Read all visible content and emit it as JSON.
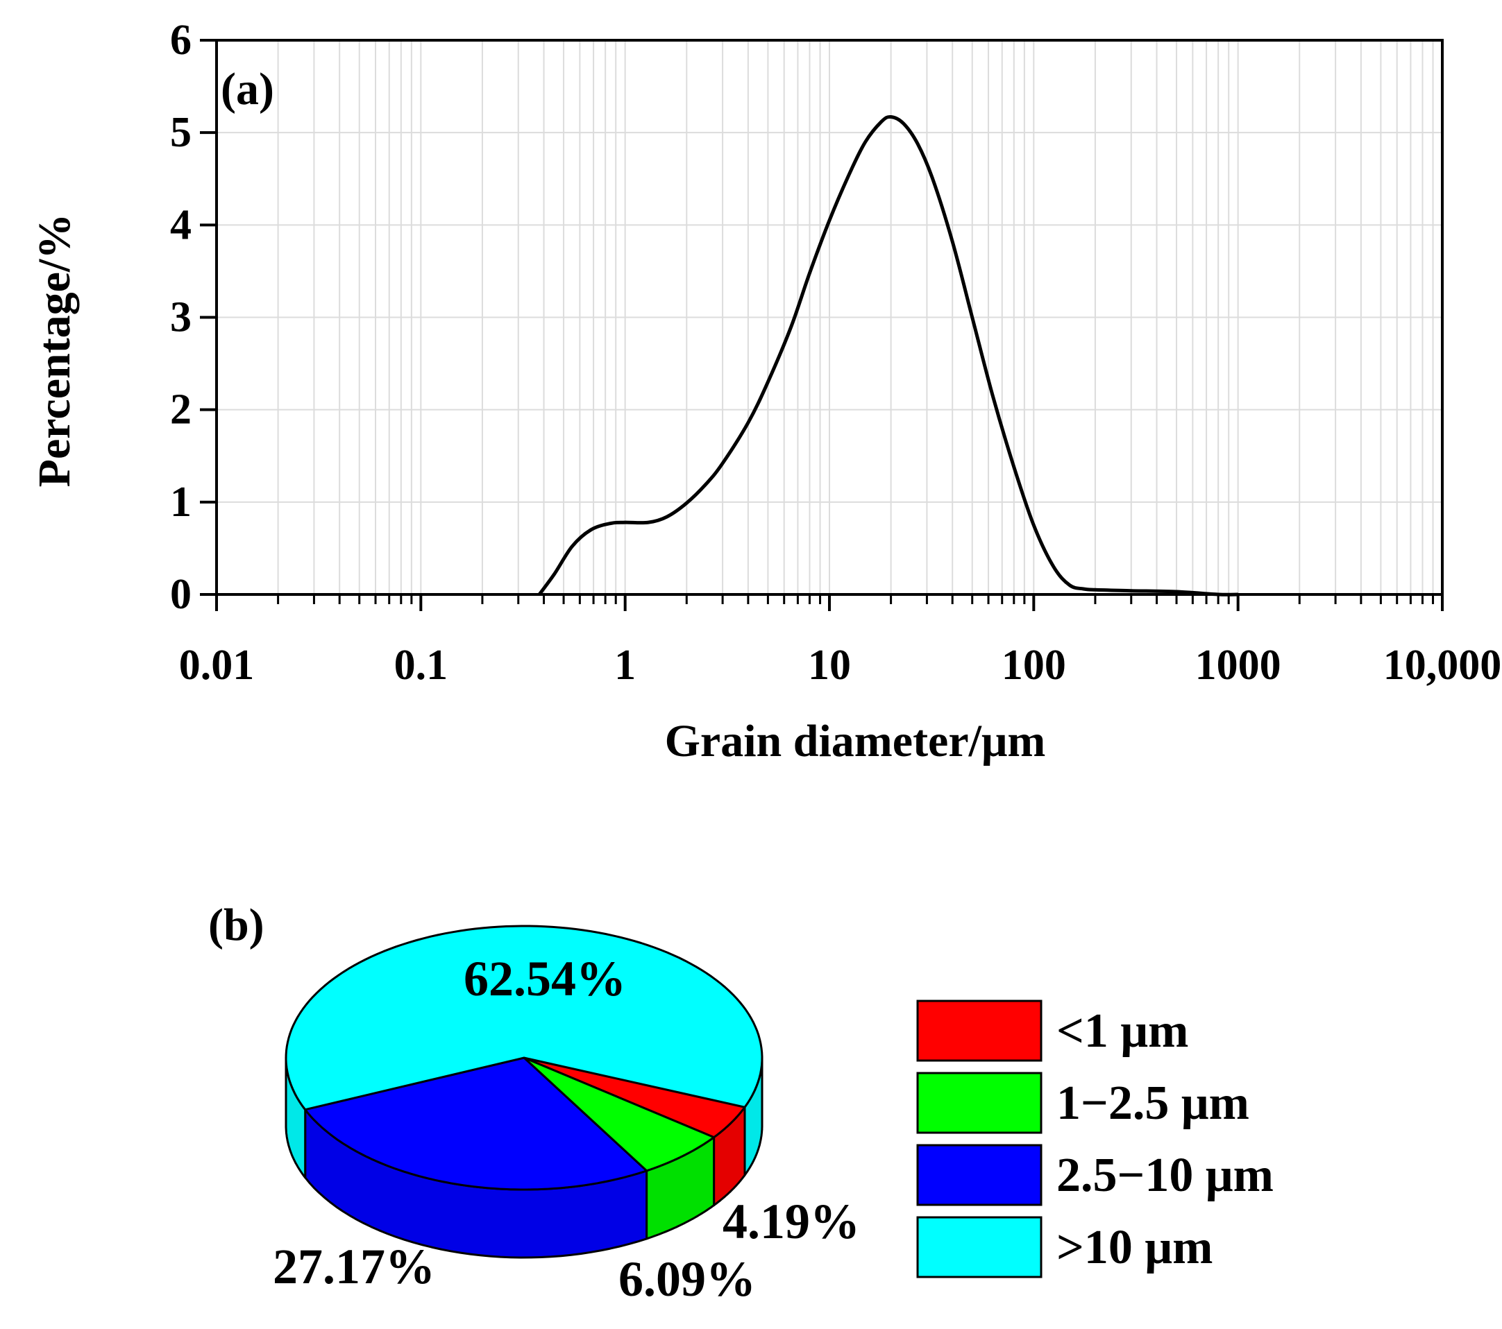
{
  "chart_data": [
    {
      "type": "line",
      "panel_label": "(a)",
      "title": "",
      "xlabel": "Grain diameter/μm",
      "ylabel": "Percentage/%",
      "xscale": "log",
      "xlim": [
        0.01,
        10000
      ],
      "ylim": [
        0,
        6
      ],
      "xticks": [
        0.01,
        0.1,
        1,
        10,
        100,
        1000,
        10000
      ],
      "xtick_labels": [
        "0.01",
        "0.1",
        "1",
        "10",
        "100",
        "1000",
        "10,000"
      ],
      "yticks": [
        0,
        1,
        2,
        3,
        4,
        5,
        6
      ],
      "ytick_labels": [
        "0",
        "1",
        "2",
        "3",
        "4",
        "5",
        "6"
      ],
      "grid": true,
      "series": [
        {
          "color": "#000000",
          "x": [
            0.38,
            0.45,
            0.55,
            0.68,
            0.85,
            1.0,
            1.3,
            1.6,
            2.0,
            2.5,
            3.0,
            4.0,
            5.0,
            6.5,
            8.0,
            10.0,
            12.5,
            15.0,
            18.0,
            20.0,
            23.0,
            27.0,
            32.0,
            40.0,
            50.0,
            63.0,
            80.0,
            100.0,
            125.0,
            150.0,
            175.0,
            200.0,
            300.0,
            500.0,
            800.0,
            1000.0
          ],
          "y": [
            0.0,
            0.22,
            0.52,
            0.7,
            0.77,
            0.78,
            0.78,
            0.84,
            0.99,
            1.2,
            1.42,
            1.86,
            2.3,
            2.9,
            3.48,
            4.05,
            4.55,
            4.9,
            5.12,
            5.17,
            5.1,
            4.88,
            4.5,
            3.82,
            3.0,
            2.15,
            1.38,
            0.75,
            0.3,
            0.1,
            0.06,
            0.05,
            0.04,
            0.03,
            0.0,
            0.0
          ]
        }
      ]
    },
    {
      "type": "pie",
      "panel_label": "(b)",
      "title": "",
      "slices": [
        {
          "name": "<1 μm",
          "value": 4.19,
          "label": "4.19%",
          "color": "#ff0000"
        },
        {
          "name": "1−2.5 μm",
          "value": 6.09,
          "label": "6.09%",
          "color": "#00ff00"
        },
        {
          "name": "2.5−10 μm",
          "value": 27.17,
          "label": "27.17%",
          "color": "#0000ff"
        },
        {
          "name": ">10 μm",
          "value": 62.54,
          "label": "62.54%",
          "color": "#00ffff"
        }
      ],
      "legend_position": "right"
    }
  ]
}
